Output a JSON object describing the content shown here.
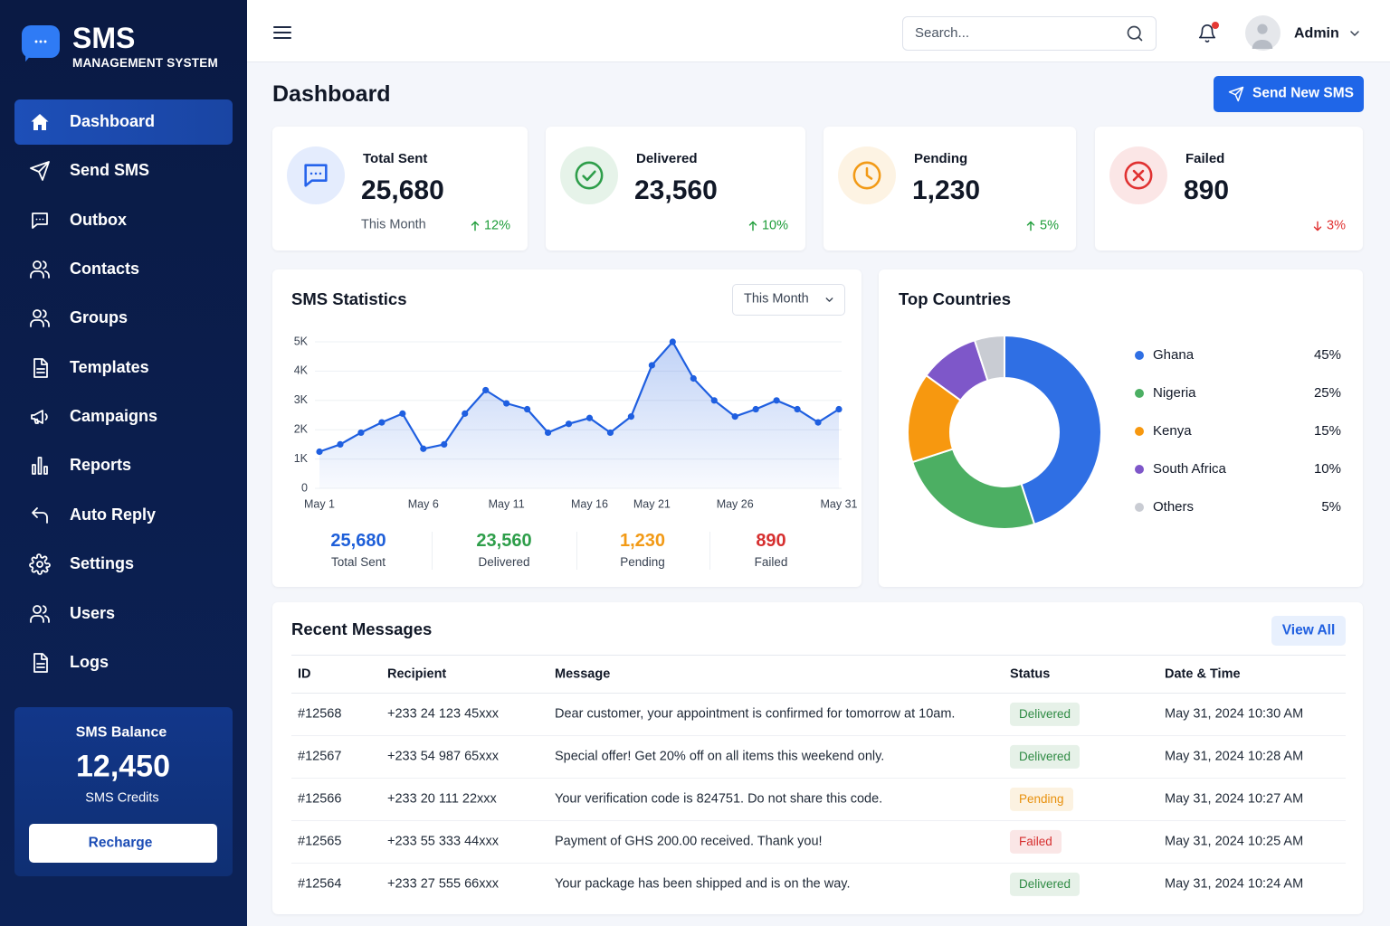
{
  "sidebar": {
    "brand": "SMS",
    "brand_subtitle": "MANAGEMENT SYSTEM",
    "nav": [
      "Dashboard",
      "Send SMS",
      "Outbox",
      "Contacts",
      "Groups",
      "Templates",
      "Campaigns",
      "Reports",
      "Auto Reply",
      "Settings",
      "Users",
      "Logs"
    ],
    "balance": {
      "title": "SMS Balance",
      "value": "12,450",
      "unit": "SMS Credits",
      "button": "Recharge"
    }
  },
  "header": {
    "search_placeholder": "Search...",
    "user": "Admin"
  },
  "page": {
    "title": "Dashboard",
    "button": "Send New SMS"
  },
  "cards": [
    {
      "label": "Total Sent",
      "value": "25,680",
      "period": "This Month",
      "change": "12%",
      "trend": "up",
      "color": "#2563eb"
    },
    {
      "label": "Delivered",
      "value": "23,560",
      "change": "10%",
      "trend": "up",
      "color": "#2e9e4a"
    },
    {
      "label": "Pending",
      "value": "1,230",
      "change": "5%",
      "trend": "up",
      "color": "#f29a16"
    },
    {
      "label": "Failed",
      "value": "890",
      "change": "3%",
      "trend": "down",
      "color": "#e03131"
    }
  ],
  "chart_data": [
    {
      "type": "line",
      "title": "SMS Statistics",
      "period": "This Month",
      "categories": [
        "May 1",
        null,
        null,
        null,
        null,
        "May 6",
        null,
        null,
        null,
        "May 11",
        null,
        null,
        null,
        "May 16",
        null,
        null,
        "May 21",
        null,
        null,
        null,
        "May 26",
        null,
        null,
        null,
        null,
        "May 31"
      ],
      "values": [
        1250,
        1500,
        1900,
        2250,
        2550,
        1350,
        1500,
        2550,
        3350,
        2900,
        2700,
        1900,
        2200,
        2400,
        1900,
        2450,
        4200,
        5000,
        3750,
        3000,
        2450,
        2700,
        3000,
        2700,
        2250,
        2700
      ],
      "color": "#1f5fe0",
      "ylim": [
        0,
        5000
      ],
      "yticks": [
        0,
        {
          "value": 1000,
          "label": "1K"
        },
        {
          "value": 2000,
          "label": "2K"
        },
        {
          "value": 3000,
          "label": "3K"
        },
        {
          "value": 4000,
          "label": "4K"
        },
        {
          "value": 5000,
          "label": "5K"
        }
      ],
      "grid": true,
      "summary": [
        {
          "value": "25,680",
          "label": "Total Sent",
          "color": "#1e5fd9"
        },
        {
          "value": "23,560",
          "label": "Delivered",
          "color": "#2e9e4a"
        },
        {
          "value": "1,230",
          "label": "Pending",
          "color": "#f29a16"
        },
        {
          "value": "890",
          "label": "Failed",
          "color": "#d62f2f"
        }
      ]
    },
    {
      "type": "donut",
      "title": "Top Countries",
      "categories": [
        "Ghana",
        "Nigeria",
        "Kenya",
        "South Africa",
        "Others"
      ],
      "values": [
        45,
        25,
        15,
        10,
        5
      ],
      "value_labels": [
        "45%",
        "25%",
        "15%",
        "10%",
        "5%"
      ],
      "colors": [
        "#2f6fe4",
        "#4caf63",
        "#f7980f",
        "#7e57c9",
        "#c9ccd3"
      ]
    }
  ],
  "table": {
    "title": "Recent Messages",
    "button": "View All",
    "columns": [
      "ID",
      "Recipient",
      "Message",
      "Status",
      "Date & Time"
    ],
    "rows": [
      [
        "#12568",
        "+233 24 123 45xxx",
        "Dear customer, your appointment is confirmed for tomorrow at 10am.",
        "Delivered",
        "May 31, 2024 10:30 AM"
      ],
      [
        "#12567",
        "+233 54 987 65xxx",
        "Special offer! Get 20% off on all items this weekend only.",
        "Delivered",
        "May 31, 2024 10:28 AM"
      ],
      [
        "#12566",
        "+233 20 111 22xxx",
        "Your verification code is 824751. Do not share this code.",
        "Pending",
        "May 31, 2024 10:27 AM"
      ],
      [
        "#12565",
        "+233 55 333 44xxx",
        "Payment of GHS 200.00 received. Thank you!",
        "Failed",
        "May 31, 2024 10:25 AM"
      ],
      [
        "#12564",
        "+233 27 555 66xxx",
        "Your package has been shipped and is on the way.",
        "Delivered",
        "May 31, 2024 10:24 AM"
      ]
    ],
    "status_colors": [
      "#2e8a43",
      "#2e8a43",
      "#e8900c",
      "#d62f2f",
      "#2e8a43"
    ]
  }
}
